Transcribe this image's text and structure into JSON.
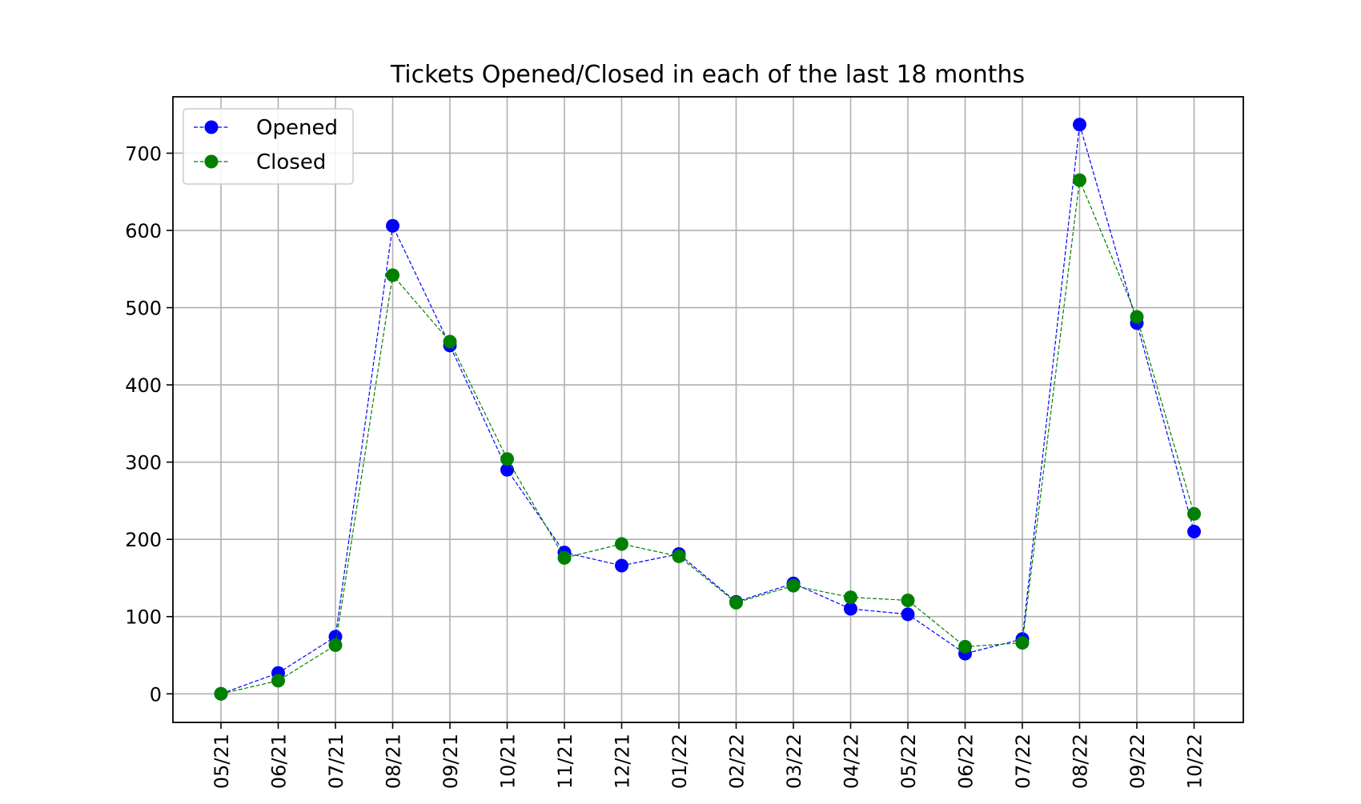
{
  "chart_data": {
    "type": "line",
    "title": "Tickets Opened/Closed in each of the last 18 months",
    "xlabel": "",
    "ylabel": "",
    "categories": [
      "05/21",
      "06/21",
      "07/21",
      "08/21",
      "09/21",
      "10/21",
      "11/21",
      "12/21",
      "01/22",
      "02/22",
      "03/22",
      "04/22",
      "05/22",
      "06/22",
      "07/22",
      "08/22",
      "09/22",
      "10/22"
    ],
    "series": [
      {
        "name": "Opened",
        "color": "#0000ff",
        "marker": "circle",
        "line_style": "dashed",
        "values": [
          0,
          27,
          74,
          606,
          451,
          290,
          183,
          166,
          181,
          119,
          143,
          110,
          103,
          52,
          71,
          737,
          480,
          210
        ]
      },
      {
        "name": "Closed",
        "color": "#008000",
        "marker": "circle",
        "line_style": "dashed",
        "values": [
          0,
          17,
          63,
          542,
          456,
          304,
          176,
          194,
          178,
          118,
          140,
          125,
          121,
          61,
          66,
          665,
          488,
          233
        ]
      }
    ],
    "ylim": [
      -37,
      773
    ],
    "yticks": [
      0,
      100,
      200,
      300,
      400,
      500,
      600,
      700
    ],
    "grid": true,
    "legend_position": "top-left"
  }
}
